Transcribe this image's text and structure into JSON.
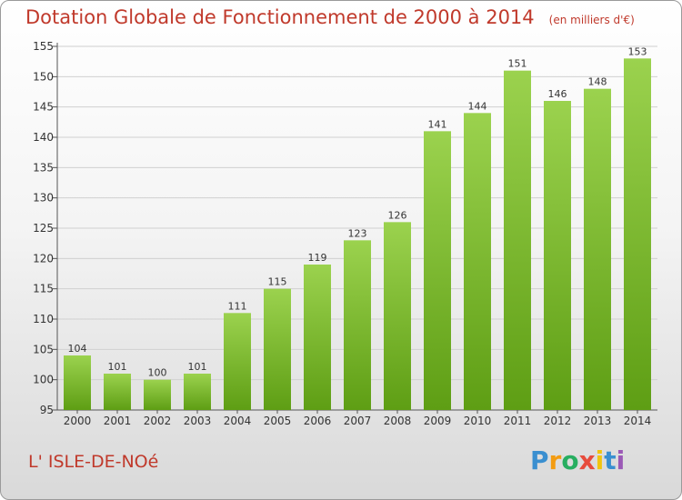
{
  "title": "Dotation Globale de Fonctionnement de 2000 à 2014",
  "subtitle": "(en milliers d'€)",
  "commune": "L' ISLE-DE-NOé",
  "logo_text": "Proxiti",
  "colors": {
    "bar_top": "#9bd24e",
    "bar_bottom": "#5e9e14",
    "title": "#c0392b"
  },
  "chart_data": {
    "type": "bar",
    "title": "Dotation Globale de Fonctionnement de 2000 à 2014",
    "subtitle": "(en milliers d'€)",
    "categories": [
      "2000",
      "2001",
      "2002",
      "2003",
      "2004",
      "2005",
      "2006",
      "2007",
      "2008",
      "2009",
      "2010",
      "2011",
      "2012",
      "2013",
      "2014"
    ],
    "values": [
      104,
      101,
      100,
      101,
      111,
      115,
      119,
      123,
      126,
      141,
      144,
      151,
      146,
      148,
      153
    ],
    "ylim": [
      95,
      155
    ],
    "yticks": [
      95,
      100,
      105,
      110,
      115,
      120,
      125,
      130,
      135,
      140,
      145,
      150,
      155
    ],
    "grid": true,
    "xlabel": "",
    "ylabel": ""
  }
}
